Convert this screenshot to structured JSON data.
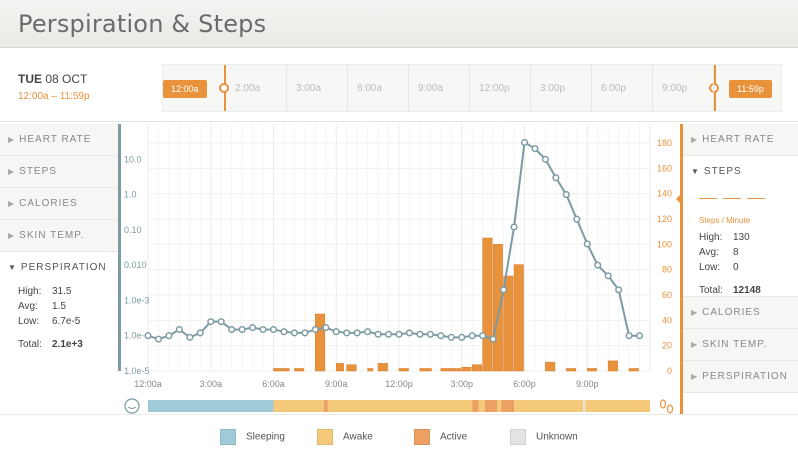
{
  "header": {
    "title": "Perspiration & Steps"
  },
  "date": {
    "day": "TUE",
    "date": "08 OCT",
    "range": "12:00a – 11:59p"
  },
  "timeline": {
    "labels": [
      "2:00a",
      "3:00a",
      "6:00a",
      "9:00a",
      "12:00p",
      "3:00p",
      "6:00p",
      "9:00p"
    ],
    "start_handle": "12:00a",
    "end_handle": "11:59p"
  },
  "left_panel": {
    "items": [
      {
        "label": "HEART RATE"
      },
      {
        "label": "STEPS"
      },
      {
        "label": "CALORIES"
      },
      {
        "label": "SKIN TEMP."
      }
    ],
    "active": {
      "label": "PERSPIRATION",
      "high_label": "High:",
      "high": "31.5",
      "avg_label": "Avg:",
      "avg": "1.5",
      "low_label": "Low:",
      "low": "6.7e-5",
      "total_label": "Total:",
      "total": "2.1e+3"
    }
  },
  "right_panel": {
    "top_items": [
      {
        "label": "HEART RATE"
      }
    ],
    "active": {
      "label": "STEPS",
      "unit": "Steps / Minute",
      "high_label": "High:",
      "high": "130",
      "avg_label": "Avg:",
      "avg": "8",
      "low_label": "Low:",
      "low": "0",
      "total_label": "Total:",
      "total": "12148"
    },
    "bottom_items": [
      {
        "label": "CALORIES"
      },
      {
        "label": "SKIN TEMP."
      },
      {
        "label": "PERSPIRATION"
      }
    ]
  },
  "legend": {
    "items": [
      {
        "label": "Sleeping",
        "color": "#9ecbd6"
      },
      {
        "label": "Awake",
        "color": "#f5c97a"
      },
      {
        "label": "Active",
        "color": "#eca063"
      },
      {
        "label": "Unknown",
        "color": "#e3e3e3"
      }
    ]
  },
  "chart_data": {
    "type": "line",
    "x_ticks": [
      "12:00a",
      "3:00a",
      "6:00a",
      "9:00a",
      "12:00p",
      "3:00p",
      "6:00p",
      "9:00p"
    ],
    "xlim": [
      0,
      24
    ],
    "left_axis": {
      "label": "",
      "scale": "log",
      "ticks": [
        "10.0",
        "1.0",
        "0.10",
        "0.010",
        "1.0e-3",
        "1.0e-4",
        "1.0e-5"
      ],
      "range": [
        1e-05,
        100
      ]
    },
    "right_axis": {
      "label": "",
      "ticks": [
        "0",
        "20",
        "40",
        "60",
        "80",
        "100",
        "120",
        "140",
        "160",
        "180"
      ],
      "range": [
        0,
        195
      ]
    },
    "perspiration": {
      "x": [
        0,
        0.5,
        1,
        1.5,
        2,
        2.5,
        3,
        3.5,
        4,
        4.5,
        5,
        5.5,
        6,
        6.5,
        7,
        7.5,
        8,
        8.5,
        9,
        9.5,
        10,
        10.5,
        11,
        11.5,
        12,
        12.5,
        13,
        13.5,
        14,
        14.5,
        15,
        15.5,
        16,
        16.5,
        17,
        17.5,
        18,
        18.5,
        19,
        19.5,
        20,
        20.5,
        21,
        21.5,
        22,
        22.5,
        23,
        23.5
      ],
      "y": [
        0.0001,
        8e-05,
        0.0001,
        0.00015,
        9e-05,
        0.00012,
        0.00025,
        0.00025,
        0.00015,
        0.00015,
        0.00017,
        0.00015,
        0.00015,
        0.00013,
        0.00012,
        0.00012,
        0.00015,
        0.00017,
        0.00013,
        0.00012,
        0.00012,
        0.00013,
        0.00011,
        0.00011,
        0.00011,
        0.00012,
        0.00011,
        0.00011,
        0.0001,
        9e-05,
        9e-05,
        0.0001,
        0.0001,
        8e-05,
        0.002,
        0.12,
        30,
        20,
        10,
        3,
        1,
        0.2,
        0.04,
        0.01,
        0.005,
        0.002,
        0.0001,
        0.0001
      ]
    },
    "steps": {
      "bins": [
        {
          "start": 6.0,
          "end": 6.8,
          "value": 2
        },
        {
          "start": 7.0,
          "end": 7.5,
          "value": 2
        },
        {
          "start": 8.0,
          "end": 8.5,
          "value": 45
        },
        {
          "start": 9.0,
          "end": 9.4,
          "value": 6
        },
        {
          "start": 9.5,
          "end": 10.0,
          "value": 5
        },
        {
          "start": 10.5,
          "end": 10.8,
          "value": 2
        },
        {
          "start": 11.0,
          "end": 11.5,
          "value": 6
        },
        {
          "start": 12.0,
          "end": 12.5,
          "value": 2
        },
        {
          "start": 13.0,
          "end": 13.6,
          "value": 2
        },
        {
          "start": 14.0,
          "end": 15.0,
          "value": 2
        },
        {
          "start": 15.0,
          "end": 15.5,
          "value": 3
        },
        {
          "start": 15.5,
          "end": 16.0,
          "value": 5
        },
        {
          "start": 16.0,
          "end": 16.5,
          "value": 105
        },
        {
          "start": 16.5,
          "end": 17.0,
          "value": 100
        },
        {
          "start": 17.0,
          "end": 17.5,
          "value": 75
        },
        {
          "start": 17.5,
          "end": 18.0,
          "value": 84
        },
        {
          "start": 19.0,
          "end": 19.5,
          "value": 7
        },
        {
          "start": 20.0,
          "end": 20.5,
          "value": 2
        },
        {
          "start": 21.0,
          "end": 21.5,
          "value": 2
        },
        {
          "start": 22.0,
          "end": 22.5,
          "value": 8
        },
        {
          "start": 23.0,
          "end": 23.5,
          "value": 2
        }
      ]
    },
    "activity_band": [
      {
        "start": 0,
        "end": 6.0,
        "state": "Sleeping"
      },
      {
        "start": 6.0,
        "end": 8.4,
        "state": "Awake"
      },
      {
        "start": 8.4,
        "end": 8.6,
        "state": "Active"
      },
      {
        "start": 8.6,
        "end": 15.5,
        "state": "Awake"
      },
      {
        "start": 15.5,
        "end": 15.8,
        "state": "Active"
      },
      {
        "start": 15.8,
        "end": 16.1,
        "state": "Awake"
      },
      {
        "start": 16.1,
        "end": 16.7,
        "state": "Active"
      },
      {
        "start": 16.7,
        "end": 16.9,
        "state": "Awake"
      },
      {
        "start": 16.9,
        "end": 17.5,
        "state": "Active"
      },
      {
        "start": 17.5,
        "end": 20.8,
        "state": "Awake"
      },
      {
        "start": 20.8,
        "end": 20.9,
        "state": "Unknown"
      },
      {
        "start": 20.9,
        "end": 24,
        "state": "Awake"
      }
    ],
    "grid": true,
    "colors": {
      "line": "#7c9ba3",
      "bars": "#e8923c",
      "left_axis": "#7c9ba3",
      "right_axis": "#e8923c"
    }
  }
}
